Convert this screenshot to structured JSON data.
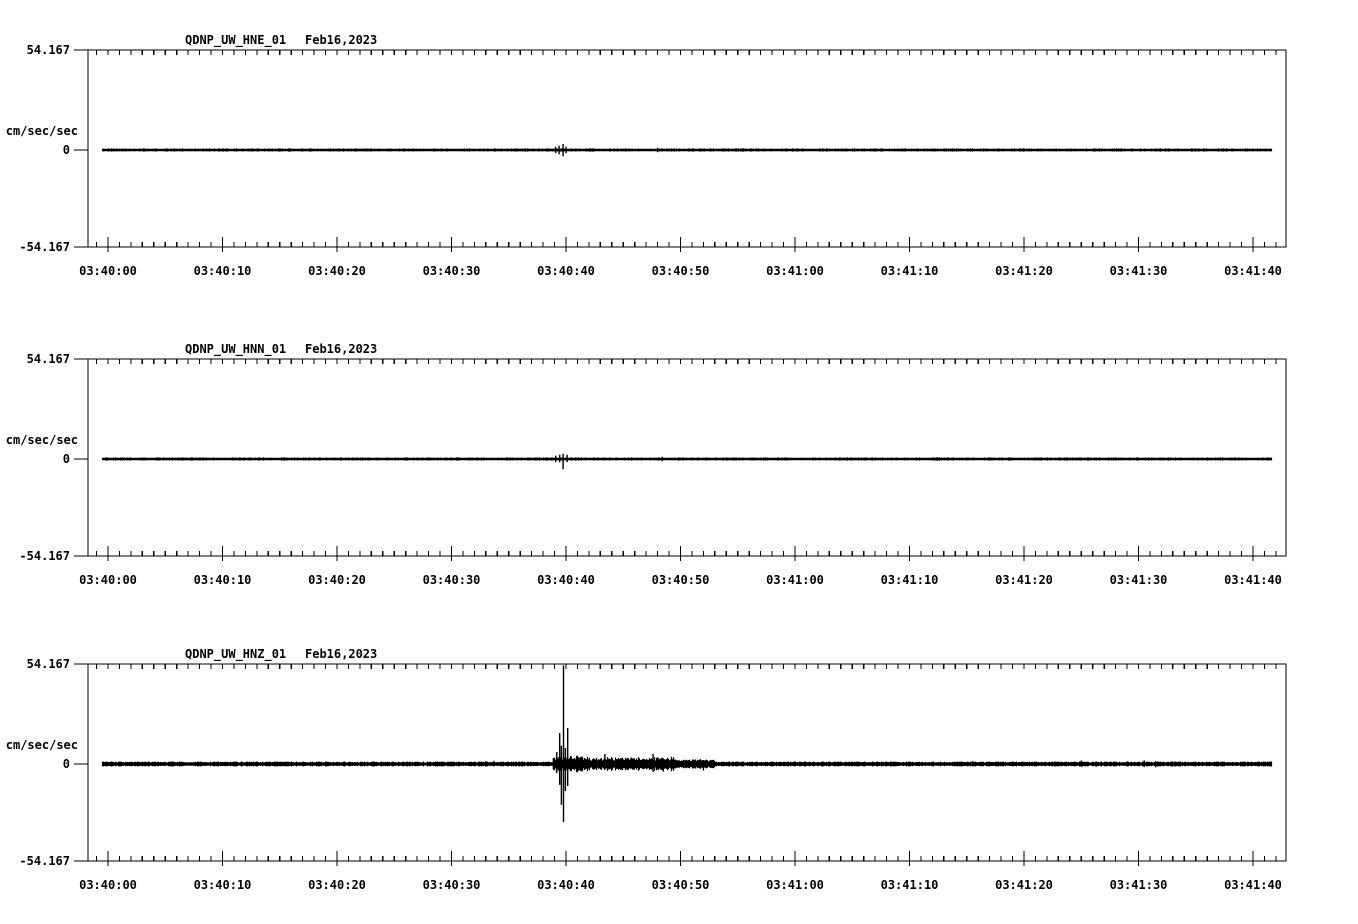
{
  "chart_data": {
    "type": "line",
    "x_axis": {
      "tick_labels": [
        "03:40:00",
        "03:40:10",
        "03:40:20",
        "03:40:30",
        "03:40:40",
        "03:40:50",
        "03:41:00",
        "03:41:10",
        "03:41:20",
        "03:41:30",
        "03:41:40"
      ],
      "major_interval_s": 10,
      "minor_interval_s": 1
    },
    "y_axis": {
      "max": 54.167,
      "min": -54.167,
      "top_label": "54.167",
      "zero_label": "0",
      "bottom_label": "-54.167",
      "unit_label": "cm/sec/sec"
    },
    "panels": [
      {
        "station": "QDNP_UW_HNE_01",
        "date": "Feb16,2023",
        "channel": "HNE",
        "baseline_value": 0,
        "noise_amp": 0.7,
        "bursts": [],
        "spikes": [
          [
            39.1,
            1.7,
            1.7
          ],
          [
            39.4,
            2.3,
            2.3
          ],
          [
            39.75,
            3.3,
            3.4
          ],
          [
            40.0,
            1.8,
            1.8
          ],
          [
            42.3,
            0.9,
            0.9
          ],
          [
            48.0,
            1.2,
            1.2
          ],
          [
            48.4,
            0.9,
            0.9
          ],
          [
            51.7,
            0.9,
            0.9
          ]
        ]
      },
      {
        "station": "QDNP_UW_HNN_01",
        "date": "Feb16,2023",
        "channel": "HNN",
        "baseline_value": 0,
        "noise_amp": 0.7,
        "bursts": [],
        "spikes": [
          [
            39.1,
            1.8,
            1.8
          ],
          [
            39.45,
            2.3,
            1.8
          ],
          [
            39.75,
            2.9,
            5.6
          ],
          [
            40.1,
            2.3,
            1.8
          ],
          [
            41.7,
            0.9,
            0.7
          ],
          [
            43.8,
            0.8,
            0.8
          ],
          [
            48.4,
            1.2,
            1.2
          ]
        ]
      },
      {
        "station": "QDNP_UW_HNZ_01",
        "date": "Feb16,2023",
        "channel": "HNZ",
        "baseline_value": 0,
        "noise_amp": 1.1,
        "bursts": [
          {
            "t0": 38.8,
            "t1": 41.5,
            "amp": 2.8
          },
          {
            "t0": 41.5,
            "t1": 49.5,
            "amp": 2.2
          },
          {
            "t0": 49.5,
            "t1": 53.0,
            "amp": 1.2
          }
        ],
        "spikes": [
          [
            2,
            1.1,
            1.1
          ],
          [
            5,
            1.2,
            1.0
          ],
          [
            8,
            0.9,
            0.9
          ],
          [
            11,
            1.4,
            1.2
          ],
          [
            13,
            1.2,
            1.2
          ],
          [
            16,
            0.9,
            1.0
          ],
          [
            18.5,
            1.0,
            0.9
          ],
          [
            20,
            1.2,
            1.0
          ],
          [
            22,
            0.9,
            0.9
          ],
          [
            24,
            1.0,
            1.1
          ],
          [
            27,
            1.3,
            1.1
          ],
          [
            29,
            1.0,
            1.0
          ],
          [
            31,
            1.2,
            1.0
          ],
          [
            33,
            1.6,
            1.4
          ],
          [
            33.7,
            1.7,
            1.3
          ],
          [
            34.5,
            1.2,
            1.2
          ],
          [
            36,
            1.1,
            1.0
          ],
          [
            37.5,
            1.0,
            1.1
          ],
          [
            38.5,
            1.4,
            1.2
          ],
          [
            38.9,
            3.3,
            2.8
          ],
          [
            39.2,
            6.6,
            5.0
          ],
          [
            39.45,
            17.0,
            11.5
          ],
          [
            39.6,
            10.0,
            22.5
          ],
          [
            39.78,
            54.2,
            31.9
          ],
          [
            39.95,
            8.8,
            14.9
          ],
          [
            40.15,
            19.8,
            12.1
          ],
          [
            40.4,
            4.4,
            3.9
          ],
          [
            40.7,
            2.8,
            2.8
          ],
          [
            41.0,
            2.2,
            2.5
          ],
          [
            41.5,
            1.7,
            1.7
          ],
          [
            42.0,
            1.9,
            2.2
          ],
          [
            42.4,
            2.5,
            3.0
          ],
          [
            42.8,
            1.7,
            1.7
          ],
          [
            43.4,
            5.5,
            3.0
          ],
          [
            43.8,
            2.2,
            1.7
          ],
          [
            44.3,
            1.9,
            1.9
          ],
          [
            45.0,
            2.5,
            2.2
          ],
          [
            45.4,
            2.2,
            2.5
          ],
          [
            45.7,
            3.6,
            2.5
          ],
          [
            46.1,
            2.2,
            2.2
          ],
          [
            46.5,
            2.2,
            1.9
          ],
          [
            47.1,
            1.9,
            2.5
          ],
          [
            47.6,
            5.5,
            4.4
          ],
          [
            48.0,
            3.6,
            3.0
          ],
          [
            48.5,
            3.0,
            4.1
          ],
          [
            49.0,
            1.9,
            1.9
          ],
          [
            49.8,
            1.4,
            1.4
          ],
          [
            50.5,
            1.1,
            1.1
          ],
          [
            51.5,
            1.1,
            1.1
          ],
          [
            52.0,
            1.9,
            3.6
          ],
          [
            52.6,
            1.1,
            0.8
          ],
          [
            53.5,
            0.8,
            0.8
          ],
          [
            55,
            1.4,
            1.2
          ],
          [
            56.5,
            1.1,
            1.1
          ],
          [
            58,
            1.2,
            1.3
          ],
          [
            60,
            1.5,
            1.2
          ],
          [
            62,
            1.1,
            1.2
          ],
          [
            64,
            1.3,
            1.1
          ],
          [
            66,
            1.1,
            1.4
          ],
          [
            68,
            1.2,
            1.1
          ],
          [
            70,
            1.4,
            1.2
          ],
          [
            72,
            1.2,
            1.3
          ],
          [
            74,
            1.1,
            1.1
          ],
          [
            75.5,
            1.6,
            1.3
          ],
          [
            77,
            1.2,
            1.2
          ],
          [
            79,
            1.4,
            1.1
          ],
          [
            81,
            1.2,
            1.3
          ],
          [
            83,
            1.3,
            1.2
          ],
          [
            85,
            1.9,
            1.5
          ],
          [
            86.3,
            1.4,
            1.6
          ],
          [
            87.5,
            1.3,
            1.2
          ],
          [
            89,
            1.5,
            1.3
          ],
          [
            90.5,
            2.0,
            1.6
          ],
          [
            91.5,
            1.5,
            1.8
          ],
          [
            93,
            1.3,
            1.3
          ],
          [
            95,
            1.2,
            1.4
          ],
          [
            97,
            1.3,
            1.2
          ],
          [
            99,
            1.1,
            1.2
          ],
          [
            100.5,
            1.4,
            1.3
          ]
        ]
      }
    ],
    "colors": {
      "ink": "#000000",
      "background": "#ffffff"
    }
  }
}
